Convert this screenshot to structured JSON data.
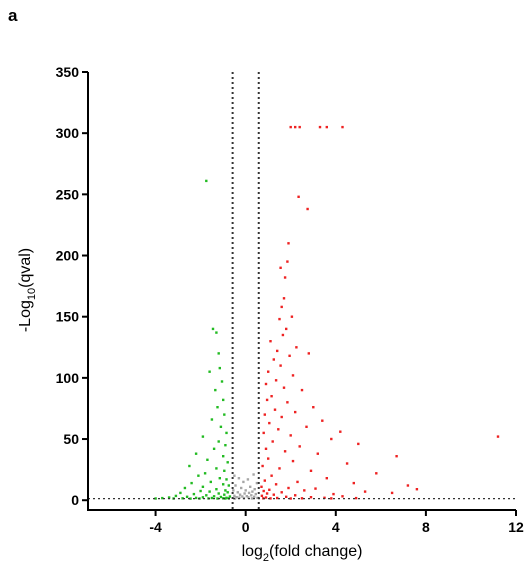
{
  "panel_label": "a",
  "chart_data": {
    "type": "scatter",
    "title": "",
    "xlabel_main": "log",
    "xlabel_sub": "2",
    "xlabel_rest": "(fold change)",
    "ylabel_main": "-Log",
    "ylabel_sub": "10",
    "ylabel_rest": "(qval)",
    "xlim": [
      -7,
      12
    ],
    "ylim": [
      -8,
      350
    ],
    "x_ticks": [
      -4,
      0,
      4,
      8,
      12
    ],
    "y_ticks": [
      0,
      50,
      100,
      150,
      200,
      250,
      300,
      350
    ],
    "vertical_thresholds": [
      -0.58,
      0.58
    ],
    "horizontal_threshold": 1.3,
    "grid": false,
    "legend": "none",
    "colors": {
      "down": "#22bb22",
      "up": "#ee2222",
      "ns": "#a6a6a6",
      "axis": "#000000",
      "threshold": "#333333"
    },
    "series": [
      {
        "class": "down",
        "points": [
          [
            -1.75,
            261
          ],
          [
            -1.45,
            140
          ],
          [
            -1.3,
            137
          ],
          [
            -1.2,
            120
          ],
          [
            -1.15,
            108
          ],
          [
            -1.6,
            105
          ],
          [
            -1.05,
            97
          ],
          [
            -1.35,
            90
          ],
          [
            -1.0,
            82
          ],
          [
            -1.25,
            76
          ],
          [
            -0.95,
            70
          ],
          [
            -1.5,
            66
          ],
          [
            -1.1,
            60
          ],
          [
            -0.85,
            55
          ],
          [
            -1.9,
            52
          ],
          [
            -1.2,
            48
          ],
          [
            -0.9,
            45
          ],
          [
            -1.4,
            42
          ],
          [
            -2.2,
            38
          ],
          [
            -1.0,
            36
          ],
          [
            -1.7,
            33
          ],
          [
            -0.8,
            31
          ],
          [
            -2.5,
            28
          ],
          [
            -1.3,
            26
          ],
          [
            -0.95,
            24
          ],
          [
            -1.8,
            22
          ],
          [
            -2.1,
            20
          ],
          [
            -1.15,
            18
          ],
          [
            -0.85,
            17
          ],
          [
            -1.55,
            15
          ],
          [
            -2.4,
            14
          ],
          [
            -1.0,
            13
          ],
          [
            -0.75,
            12
          ],
          [
            -1.9,
            11
          ],
          [
            -2.7,
            10
          ],
          [
            -1.3,
            9
          ],
          [
            -0.9,
            8
          ],
          [
            -2.0,
            7.5
          ],
          [
            -1.6,
            7
          ],
          [
            -0.8,
            6.5
          ],
          [
            -2.9,
            6
          ],
          [
            -1.2,
            5.5
          ],
          [
            -2.3,
            5
          ],
          [
            -0.95,
            4.5
          ],
          [
            -1.75,
            4
          ],
          [
            -3.1,
            3.5
          ],
          [
            -1.4,
            3.2
          ],
          [
            -0.7,
            3
          ],
          [
            -2.6,
            2.8
          ],
          [
            -1.1,
            2.6
          ],
          [
            -1.9,
            2.4
          ],
          [
            -3.4,
            2.2
          ],
          [
            -0.85,
            2
          ],
          [
            -2.2,
            1.9
          ],
          [
            -1.5,
            1.8
          ],
          [
            -3.7,
            1.7
          ],
          [
            -1.0,
            1.6
          ],
          [
            -2.8,
            1.55
          ],
          [
            -0.75,
            1.5
          ],
          [
            -1.65,
            1.45
          ],
          [
            -4.0,
            1.4
          ],
          [
            -2.05,
            1.4
          ],
          [
            -1.25,
            1.4
          ],
          [
            -3.2,
            1.38
          ],
          [
            -0.9,
            1.36
          ],
          [
            -2.45,
            1.35
          ]
        ]
      },
      {
        "class": "up",
        "points": [
          [
            2.0,
            305
          ],
          [
            2.2,
            305
          ],
          [
            2.4,
            305
          ],
          [
            3.3,
            305
          ],
          [
            3.6,
            305
          ],
          [
            4.3,
            305
          ],
          [
            2.35,
            248
          ],
          [
            2.75,
            238
          ],
          [
            1.9,
            210
          ],
          [
            1.85,
            195
          ],
          [
            1.55,
            190
          ],
          [
            1.75,
            182
          ],
          [
            1.7,
            165
          ],
          [
            1.6,
            158
          ],
          [
            2.05,
            150
          ],
          [
            1.5,
            148
          ],
          [
            1.8,
            140
          ],
          [
            1.65,
            135
          ],
          [
            1.1,
            130
          ],
          [
            2.25,
            125
          ],
          [
            1.4,
            122
          ],
          [
            2.8,
            120
          ],
          [
            1.95,
            118
          ],
          [
            1.25,
            115
          ],
          [
            1.55,
            110
          ],
          [
            1.0,
            105
          ],
          [
            2.1,
            102
          ],
          [
            1.35,
            98
          ],
          [
            0.9,
            95
          ],
          [
            1.7,
            92
          ],
          [
            2.5,
            90
          ],
          [
            1.15,
            85
          ],
          [
            0.95,
            82
          ],
          [
            1.85,
            80
          ],
          [
            3.0,
            76
          ],
          [
            1.3,
            74
          ],
          [
            2.2,
            72
          ],
          [
            0.85,
            70
          ],
          [
            1.6,
            68
          ],
          [
            3.4,
            65
          ],
          [
            1.05,
            63
          ],
          [
            2.7,
            60
          ],
          [
            1.45,
            58
          ],
          [
            4.2,
            56
          ],
          [
            0.8,
            55
          ],
          [
            2.0,
            53
          ],
          [
            11.2,
            52
          ],
          [
            3.8,
            50
          ],
          [
            1.2,
            48
          ],
          [
            5.0,
            46
          ],
          [
            2.4,
            44
          ],
          [
            0.9,
            42
          ],
          [
            1.75,
            40
          ],
          [
            3.2,
            38
          ],
          [
            6.7,
            36
          ],
          [
            1.0,
            34
          ],
          [
            2.1,
            32
          ],
          [
            4.5,
            30
          ],
          [
            0.75,
            28
          ],
          [
            1.5,
            26
          ],
          [
            2.9,
            24
          ],
          [
            5.8,
            22
          ],
          [
            1.15,
            20
          ],
          [
            3.6,
            18
          ],
          [
            0.85,
            16
          ],
          [
            2.3,
            15
          ],
          [
            4.8,
            14
          ],
          [
            1.35,
            13
          ],
          [
            7.2,
            12
          ],
          [
            0.7,
            11
          ],
          [
            1.9,
            10
          ],
          [
            3.1,
            9.5
          ],
          [
            7.6,
            9
          ],
          [
            1.05,
            8.5
          ],
          [
            2.6,
            8
          ],
          [
            0.8,
            7.5
          ],
          [
            5.3,
            7
          ],
          [
            1.6,
            6.5
          ],
          [
            6.5,
            6
          ],
          [
            0.95,
            5.5
          ],
          [
            3.9,
            5
          ],
          [
            1.25,
            4.5
          ],
          [
            2.2,
            4
          ],
          [
            0.72,
            3.6
          ],
          [
            4.3,
            3.2
          ],
          [
            1.8,
            2.8
          ],
          [
            2.9,
            2.5
          ],
          [
            0.9,
            2.2
          ],
          [
            3.5,
            2.0
          ],
          [
            1.4,
            1.8
          ],
          [
            4.9,
            1.7
          ],
          [
            0.78,
            1.6
          ],
          [
            2.5,
            1.55
          ],
          [
            1.1,
            1.5
          ],
          [
            3.8,
            1.45
          ],
          [
            2.0,
            1.4
          ]
        ]
      },
      {
        "class": "ns",
        "points": [
          [
            -0.5,
            20
          ],
          [
            -0.3,
            18
          ],
          [
            0.1,
            17
          ],
          [
            0.35,
            21
          ],
          [
            -0.1,
            15
          ],
          [
            0.5,
            14
          ],
          [
            -0.45,
            12
          ],
          [
            0.2,
            11
          ],
          [
            -0.2,
            10
          ],
          [
            0.4,
            9
          ],
          [
            -0.55,
            8
          ],
          [
            0.0,
            8
          ],
          [
            0.3,
            7
          ],
          [
            -0.35,
            6.5
          ],
          [
            0.15,
            6
          ],
          [
            -0.05,
            5.5
          ],
          [
            0.45,
            5
          ],
          [
            -0.25,
            4.5
          ],
          [
            0.25,
            4
          ],
          [
            -0.5,
            3.6
          ],
          [
            0.05,
            3.3
          ],
          [
            -0.15,
            3
          ],
          [
            0.38,
            2.8
          ],
          [
            -0.4,
            2.5
          ],
          [
            0.12,
            2.3
          ],
          [
            -0.28,
            2.1
          ],
          [
            0.52,
            1.9
          ],
          [
            -0.08,
            1.7
          ],
          [
            0.28,
            1.5
          ],
          [
            -0.48,
            1.4
          ]
        ]
      }
    ]
  }
}
